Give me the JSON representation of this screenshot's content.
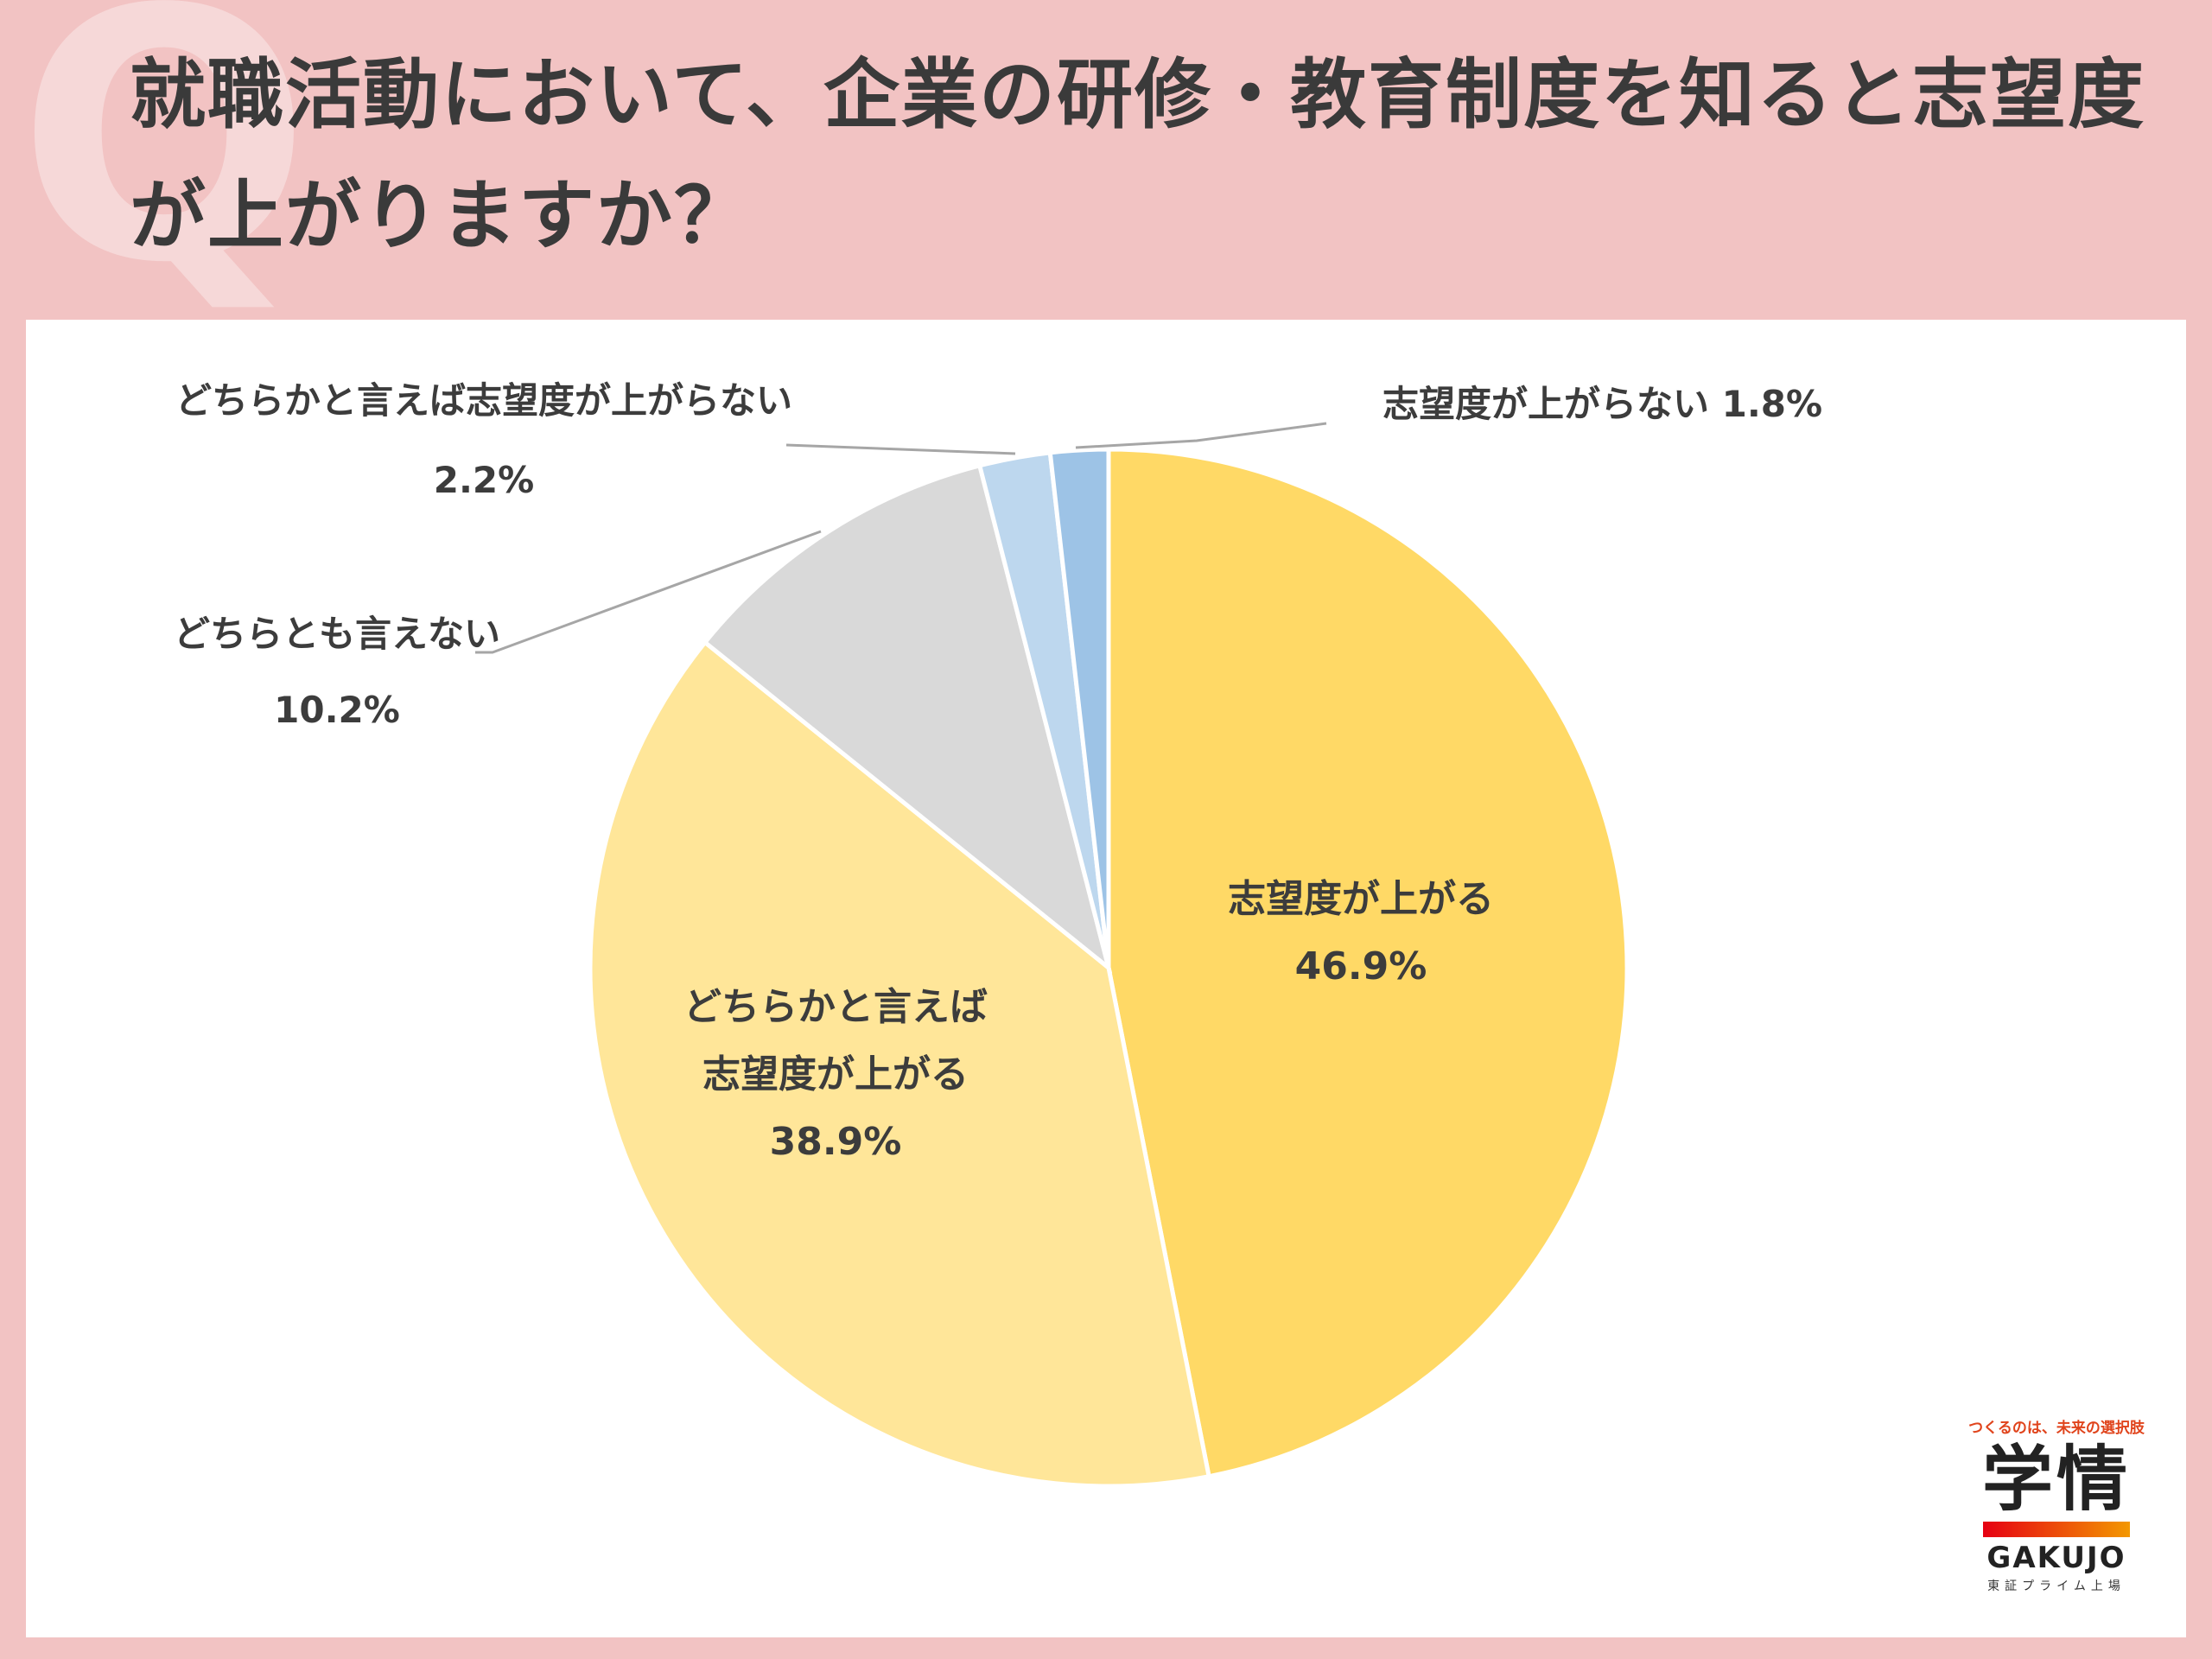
{
  "title": "就職活動において、企業の研修・教育制度を知ると志望度が上がりますか？",
  "q_mark": "Q",
  "chart_data": {
    "type": "pie",
    "title": "就職活動において、企業の研修・教育制度を知ると志望度が上がりますか？",
    "slices": [
      {
        "label": "志望度が上がる",
        "value": 46.9,
        "value_label": "46.9%",
        "color": "#ffd966"
      },
      {
        "label": "どちらかと言えば志望度が上がる",
        "value": 38.9,
        "value_label": "38.9%",
        "color": "#ffe699"
      },
      {
        "label": "どちらとも言えない",
        "value": 10.2,
        "value_label": "10.2%",
        "color": "#d9d9d9"
      },
      {
        "label": "どちらかと言えば志望度が上がらない",
        "value": 2.2,
        "value_label": "2.2%",
        "color": "#bdd7ee"
      },
      {
        "label": "志望度が上がらない",
        "value": 1.8,
        "value_label": "1.8%",
        "color": "#9dc3e6"
      }
    ],
    "start": "12 o'clock",
    "direction": "clockwise"
  },
  "labels": {
    "s0_line1": "志望度が上がる",
    "s0_line2": "46.9%",
    "s1_line1": "どちらかと言えば",
    "s1_line2": "志望度が上がる",
    "s1_line3": "38.9%",
    "s2_line1": "どちらとも言えない",
    "s2_line2": "10.2%",
    "s3_line1": "どちらかと言えば志望度が上がらない",
    "s3_line2": "2.2%",
    "s4_line1": "志望度が上がらない 1.8%"
  },
  "logo": {
    "tagline": "つくるのは、未来の選択肢",
    "brand": "学情",
    "brand_en": "GAKUJO",
    "listing": "東証プライム上場"
  }
}
